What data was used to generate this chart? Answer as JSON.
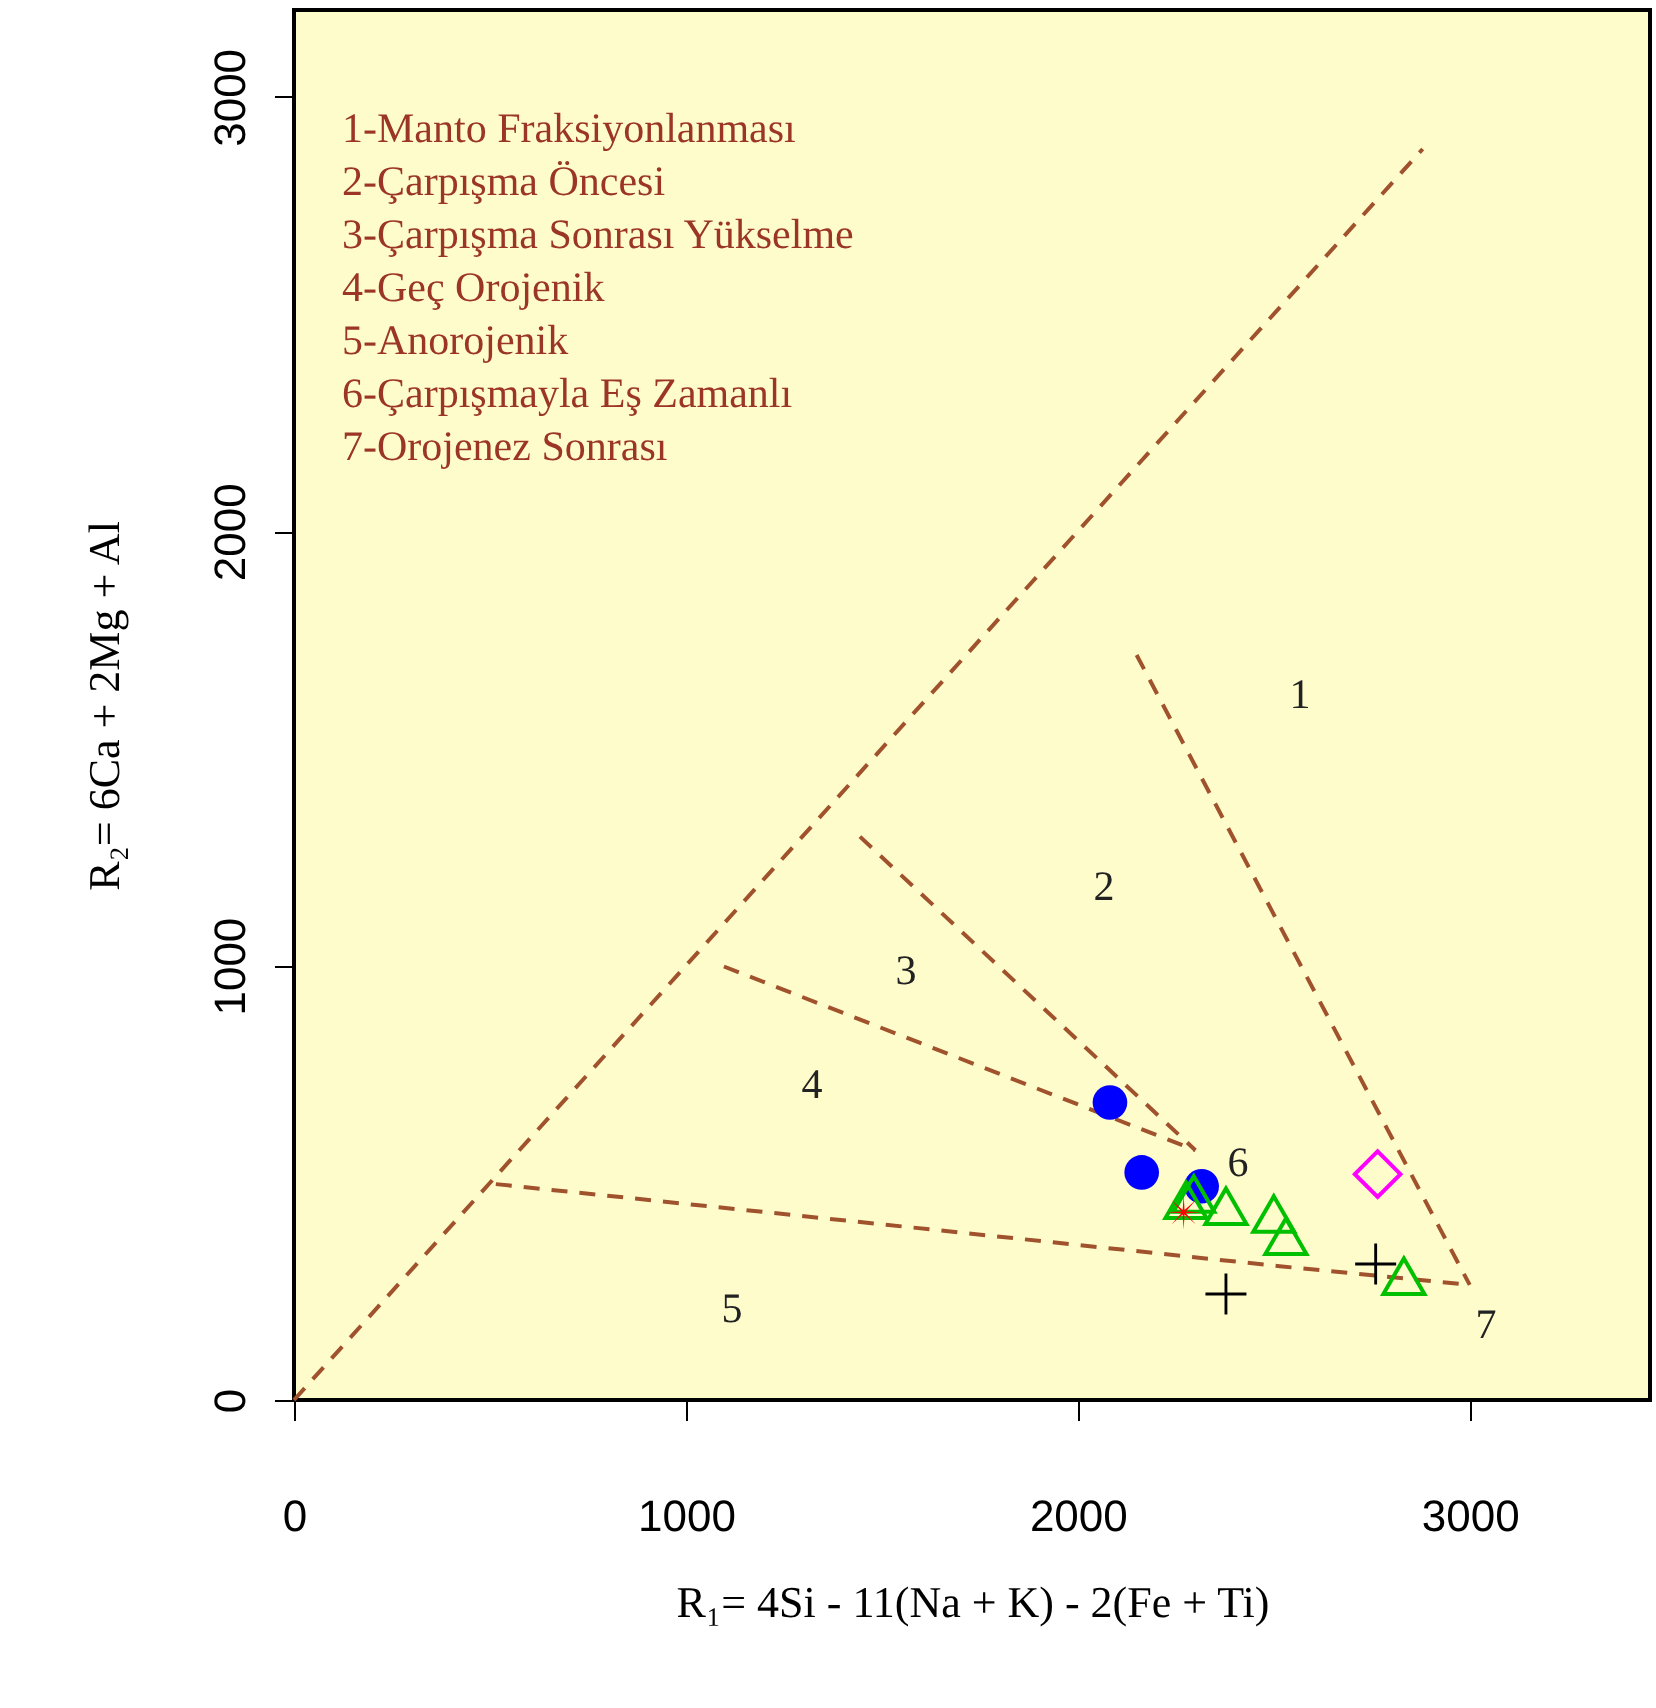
{
  "chart_data": {
    "type": "scatter",
    "xlabel": "R₁= 4Si - 11(Na + K) - 2(Fe + Ti)",
    "ylabel": "R₂= 6Ca + 2Mg + Al",
    "xlim": [
      0,
      3460
    ],
    "ylim": [
      0,
      3200
    ],
    "xticks": [
      0,
      1000,
      2000,
      3000
    ],
    "yticks": [
      0,
      1000,
      2000,
      3000
    ],
    "grid": false,
    "series": [
      {
        "type": "line",
        "line_style": "dashed",
        "marker": "none",
        "color": "#a0522d",
        "x": [
          0,
          2880
        ],
        "values": [
          0,
          2880
        ]
      },
      {
        "type": "line",
        "line_style": "dashed",
        "marker": "none",
        "color": "#a0522d",
        "x": [
          2150,
          3000
        ],
        "values": [
          1715,
          265
        ]
      },
      {
        "type": "line",
        "line_style": "dashed",
        "marker": "none",
        "color": "#a0522d",
        "x": [
          1444,
          2300
        ],
        "values": [
          1297,
          575
        ]
      },
      {
        "type": "line",
        "line_style": "dashed",
        "marker": "none",
        "color": "#a0522d",
        "x": [
          1097,
          2300
        ],
        "values": [
          998,
          575
        ]
      },
      {
        "type": "line",
        "line_style": "dashed",
        "marker": "none",
        "color": "#a0522d",
        "x": [
          515,
          1495,
          2515,
          3000
        ],
        "values": [
          497,
          405,
          308,
          265
        ]
      },
      {
        "marker": "circle",
        "color": "#0000ff",
        "x": [
          2082,
          2163,
          2316
        ],
        "values": [
          685,
          524,
          492
        ]
      },
      {
        "marker": "triangle",
        "color": "#00c000",
        "x": [
          2276,
          2296,
          2378,
          2500,
          2531,
          2832
        ],
        "values": [
          460,
          474,
          446,
          428,
          377,
          285
        ]
      },
      {
        "marker": "star",
        "color": "#ff0000",
        "x": [
          2270
        ],
        "values": [
          432
        ]
      },
      {
        "marker": "cross",
        "color": "#000000",
        "x": [
          2378,
          2760
        ],
        "values": [
          244,
          313
        ]
      },
      {
        "marker": "diamond",
        "color": "#ff00ff",
        "x": [
          2765
        ],
        "values": [
          520
        ]
      }
    ],
    "annotations": [
      "1-Manto Fraksiyonlanması",
      "2-Çarpışma Öncesi",
      "3-Çarpışma Sonrası Yükselme",
      "4-Geç Orojenik",
      "5-Anorojenik",
      "6-Çarpışmayla Eş Zamanlı",
      "7-Orojenez Sonrası",
      "1",
      "2",
      "3",
      "4",
      "5",
      "6",
      "7"
    ]
  }
}
